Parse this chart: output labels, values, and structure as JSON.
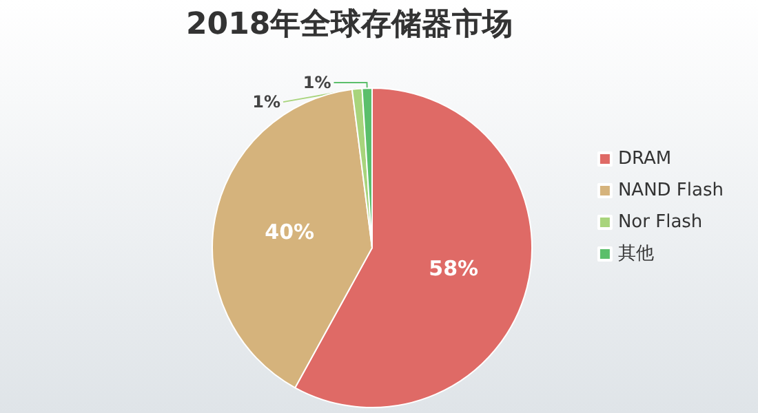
{
  "chart_data": {
    "type": "pie",
    "title": "2018年全球存储器市场",
    "categories": [
      "DRAM",
      "NAND Flash",
      "Nor Flash",
      "其他"
    ],
    "values": [
      58,
      40,
      1,
      1
    ],
    "value_labels": [
      "58%",
      "40%",
      "1%",
      "1%"
    ],
    "colors": [
      "#df6a66",
      "#d5b37c",
      "#a8d47c",
      "#5bbf6b"
    ],
    "legend": "right"
  }
}
